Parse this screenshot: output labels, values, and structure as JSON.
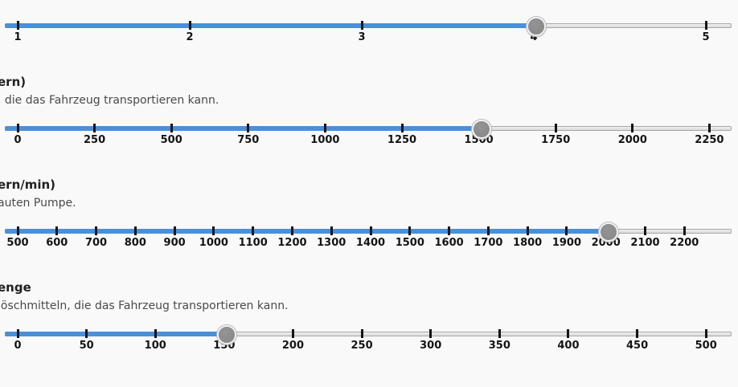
{
  "page": {
    "background_color": "#f9f9f9"
  },
  "theme": {
    "track_fill_color": "#4a90d8",
    "track_empty_color": "#e5e5e5",
    "track_border_color": "#a8a8a8",
    "handle_color": "#8a8a8a",
    "tick_color": "#141414",
    "tick_label_color": "#141414",
    "heading_color": "#212121",
    "description_color": "#4a4a4a"
  },
  "sliders": [
    {
      "name": "slider-1",
      "heading": "",
      "description": "",
      "value": 4,
      "tick_labels": [
        "1",
        "2",
        "3",
        "4",
        "5"
      ]
    },
    {
      "name": "slider-2",
      "heading": "ern)",
      "description": ", die das Fahrzeug transportieren kann.",
      "value": 1500,
      "tick_labels": [
        "0",
        "250",
        "500",
        "750",
        "1000",
        "1250",
        "1500",
        "1750",
        "2000",
        "2250"
      ]
    },
    {
      "name": "slider-3",
      "heading": "ern/min)",
      "description": "auten Pumpe.",
      "value": 2000,
      "tick_labels": [
        "500",
        "600",
        "700",
        "800",
        "900",
        "1000",
        "1100",
        "1200",
        "1300",
        "1400",
        "1500",
        "1600",
        "1700",
        "1800",
        "1900",
        "2000",
        "2100",
        "2200"
      ]
    },
    {
      "name": "slider-4",
      "heading": "enge",
      "description": "löschmitteln, die das Fahrzeug transportieren kann.",
      "value": 150,
      "tick_labels": [
        "0",
        "50",
        "100",
        "150",
        "200",
        "250",
        "300",
        "350",
        "400",
        "450",
        "500"
      ]
    }
  ]
}
